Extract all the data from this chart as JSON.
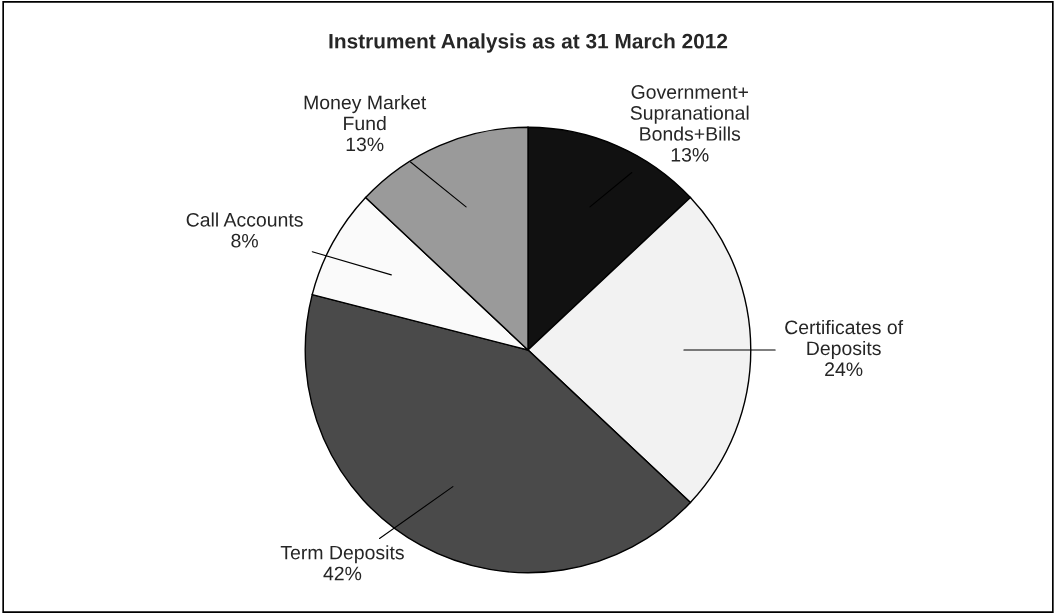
{
  "chart_data": {
    "type": "pie",
    "title": "Instrument Analysis as at 31 March 2012",
    "categories": [
      "Government+\nSupranational\nBonds+Bills",
      "Certificates of\nDeposits",
      "Term Deposits",
      "Call Accounts",
      "Money Market\nFund"
    ],
    "values": [
      13,
      24,
      42,
      8,
      13
    ],
    "value_labels": [
      "13%",
      "24%",
      "42%",
      "8%",
      "13%"
    ],
    "colors": [
      "#111111",
      "#f2f2f2",
      "#4a4a4a",
      "#fafafa",
      "#9a9a9a"
    ]
  }
}
